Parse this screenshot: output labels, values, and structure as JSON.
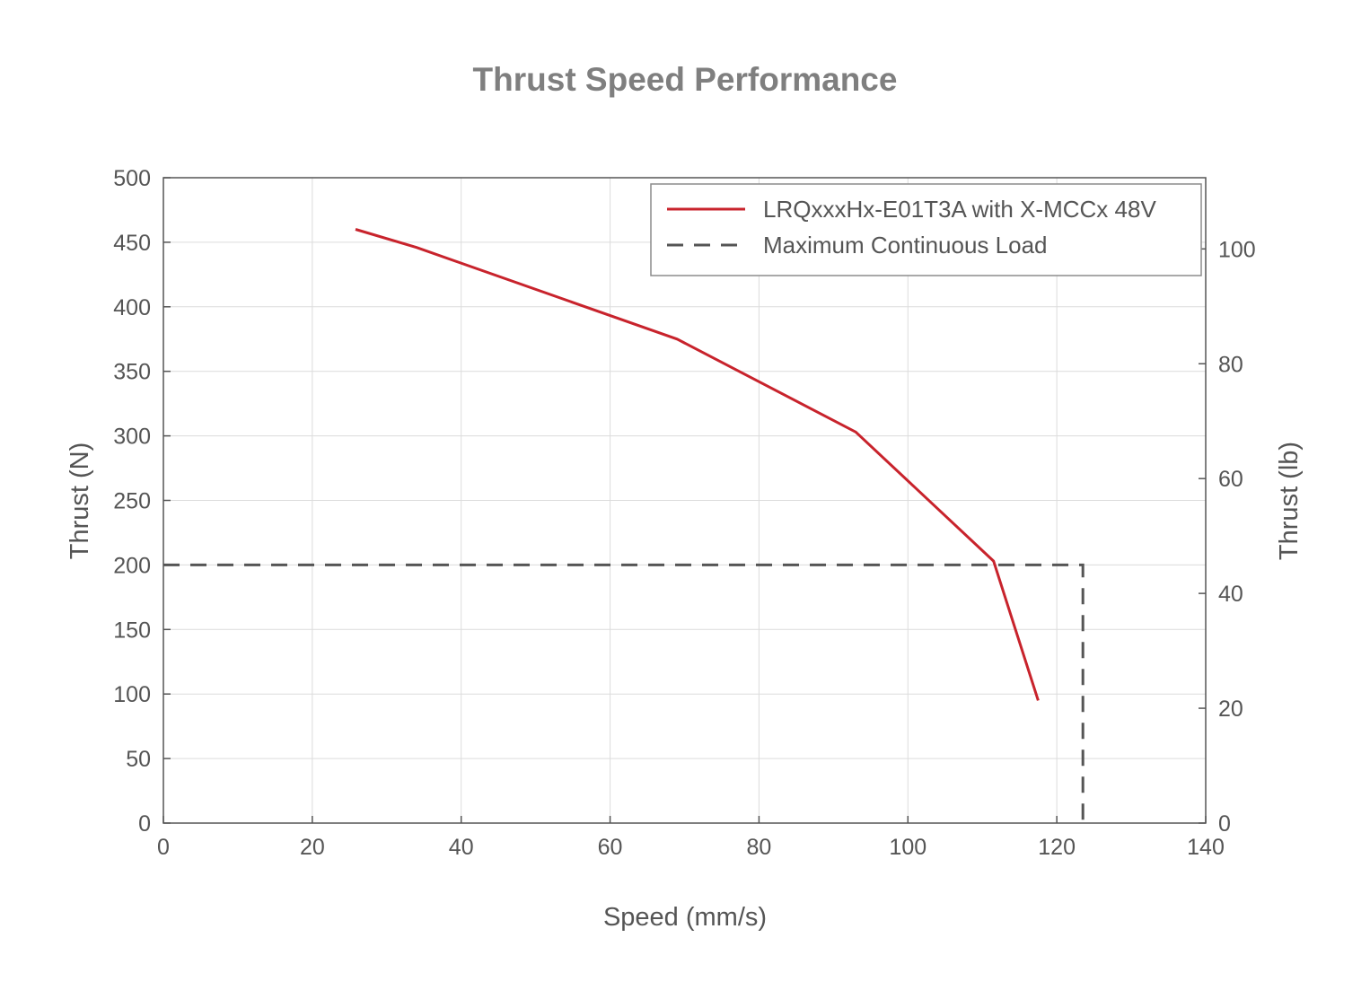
{
  "chart_data": {
    "type": "line",
    "title": "Thrust Speed Performance",
    "xlabel": "Speed (mm/s)",
    "ylabel": "Thrust (N)",
    "y2label": "Thrust (lb)",
    "xlim": [
      0,
      140
    ],
    "ylim": [
      0,
      500
    ],
    "y2lim": [
      0,
      112.4
    ],
    "xticks": [
      0,
      20,
      40,
      60,
      80,
      100,
      120,
      140
    ],
    "yticks": [
      0,
      50,
      100,
      150,
      200,
      250,
      300,
      350,
      400,
      450,
      500
    ],
    "y2ticks": [
      0,
      20,
      40,
      60,
      80,
      100
    ],
    "grid": true,
    "legend_position": "top-right",
    "series": [
      {
        "name": "LRQxxxHx-E01T3A with X-MCCx 48V",
        "color": "#c8232c",
        "style": "solid",
        "x": [
          25.8,
          34,
          69,
          93,
          111.5,
          117.5
        ],
        "y": [
          460,
          446,
          375,
          303,
          203,
          95
        ]
      },
      {
        "name": "Maximum Continuous Load",
        "color": "#555555",
        "style": "dashed",
        "x": [
          0,
          123.5,
          123.5
        ],
        "y": [
          200,
          200,
          0
        ]
      }
    ]
  }
}
